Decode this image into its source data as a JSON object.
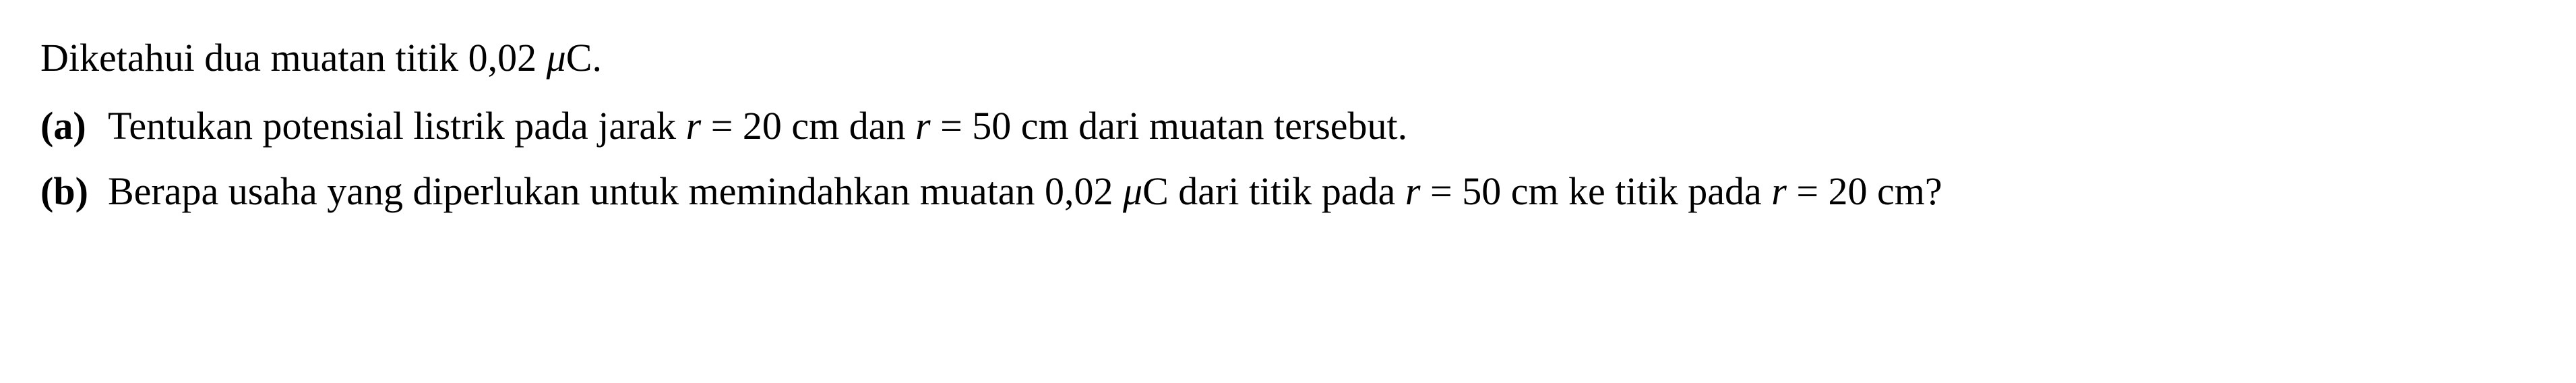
{
  "text": {
    "intro_part1": "Diketahui dua muatan titik 0,02 ",
    "intro_unit": "μ",
    "intro_part2": "C.",
    "a_label": "(a)",
    "a_text_1": "Tentukan potensial listrik pada jarak ",
    "a_var1": "r",
    "a_text_2": " = 20 cm dan ",
    "a_var2": "r",
    "a_text_3": " = 50 cm dari muatan tersebut.",
    "b_label": "(b)",
    "b_text_1": "Berapa usaha yang diperlukan untuk memindahkan muatan 0,02 ",
    "b_unit": "μ",
    "b_text_2": "C dari titik pada ",
    "b_var1": "r",
    "b_text_3": " = 50 cm ke titik pada ",
    "b_var2": "r",
    "b_text_4": " = 20 cm?"
  },
  "style": {
    "font_size": 58,
    "line_height": 1.6,
    "text_color": "#000000",
    "background_color": "#ffffff",
    "font_family": "Georgia, Times New Roman, serif",
    "label_weight": "bold"
  }
}
